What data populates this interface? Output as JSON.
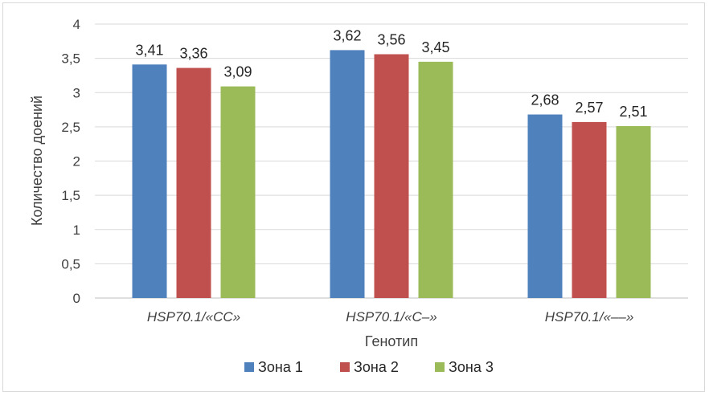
{
  "chart_data": {
    "type": "bar",
    "title": "",
    "xlabel": "Генотип",
    "ylabel": "Количество  доений",
    "categories": [
      "HSP70.1/«CC»",
      "HSP70.1/«C–»",
      "HSP70.1/«––»"
    ],
    "series": [
      {
        "name": "Зона 1",
        "color": "#4f81bd",
        "values": [
          3.41,
          3.62,
          2.68
        ],
        "labels": [
          "3,41",
          "3,62",
          "2,68"
        ]
      },
      {
        "name": "Зона 2",
        "color": "#c0504d",
        "values": [
          3.36,
          3.56,
          2.57
        ],
        "labels": [
          "3,36",
          "3,56",
          "2,57"
        ]
      },
      {
        "name": "Зона 3",
        "color": "#9bbb59",
        "values": [
          3.09,
          3.45,
          2.51
        ],
        "labels": [
          "3,09",
          "3,45",
          "2,51"
        ]
      }
    ],
    "ylim": [
      0,
      4
    ],
    "yticks": [
      0,
      0.5,
      1,
      1.5,
      2,
      2.5,
      3,
      3.5,
      4
    ],
    "ytick_labels": [
      "0",
      "0,5",
      "1",
      "1,5",
      "2",
      "2,5",
      "3",
      "3,5",
      "4"
    ],
    "grid": true,
    "legend_position": "bottom"
  }
}
